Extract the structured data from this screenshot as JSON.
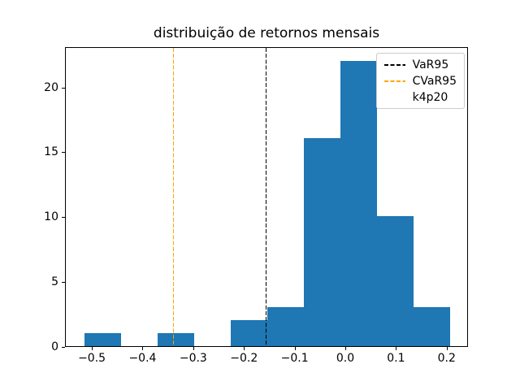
{
  "figure": {
    "background": "#ffffff"
  },
  "chart_data": {
    "type": "histogram",
    "title": "distribuição de retornos mensais",
    "xlabel": "",
    "ylabel": "",
    "bar_color": "#1f77b4",
    "bins": {
      "start": -0.5165,
      "width": 0.0721,
      "counts": [
        1,
        0,
        1,
        0,
        2,
        3,
        16,
        22,
        10,
        3
      ]
    },
    "total_observations": 58,
    "xlim": [
      -0.553,
      0.242
    ],
    "ylim": [
      0,
      23.1
    ],
    "xticks": {
      "values": [
        -0.5,
        -0.4,
        -0.3,
        -0.2,
        -0.1,
        0.0,
        0.1,
        0.2
      ],
      "labels": [
        "−0.5",
        "−0.4",
        "−0.3",
        "−0.2",
        "−0.1",
        "0.0",
        "0.1",
        "0.2"
      ]
    },
    "yticks": {
      "values": [
        0,
        5,
        10,
        15,
        20
      ],
      "labels": [
        "0",
        "5",
        "10",
        "15",
        "20"
      ]
    },
    "vlines": [
      {
        "name": "VaR95",
        "x": -0.158,
        "color": "#000000",
        "style": "dashed"
      },
      {
        "name": "CVaR95",
        "x": -0.341,
        "color": "#ffa500",
        "style": "dashed"
      }
    ],
    "legend": {
      "position": "upper right",
      "entries": [
        {
          "label": "VaR95",
          "handle": "dashed-line",
          "color": "#000000"
        },
        {
          "label": "CVaR95",
          "handle": "dashed-line",
          "color": "#ffa500"
        },
        {
          "label": "k4p20",
          "handle": "none",
          "color": "none"
        }
      ]
    },
    "grid": false
  }
}
